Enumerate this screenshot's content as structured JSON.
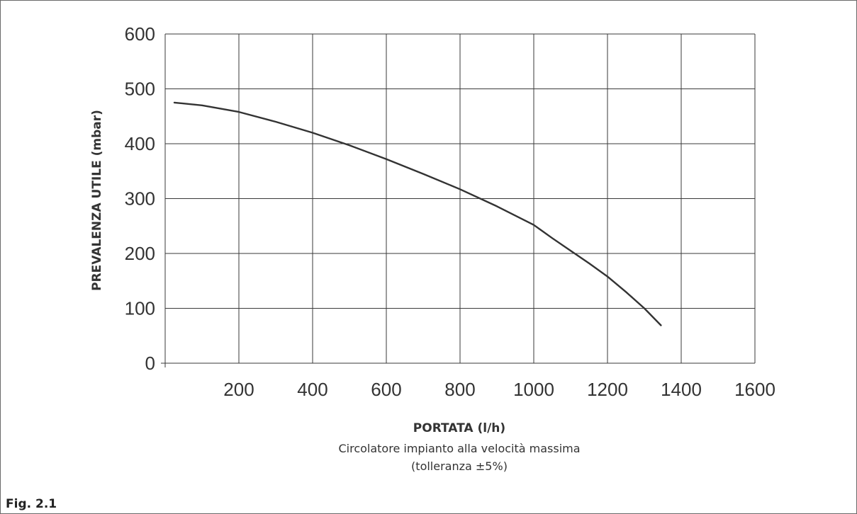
{
  "figure_label": "Fig. 2.1",
  "caption": {
    "line1": "Circolatore impianto alla velocità massima",
    "line2": "(tolleranza ±5%)"
  },
  "chart_data": {
    "type": "line",
    "xlabel": "PORTATA (l/h)",
    "ylabel": "PREVALENZA UTILE (mbar)",
    "xlim": [
      0,
      1600
    ],
    "ylim": [
      0,
      600
    ],
    "x_ticks": [
      200,
      400,
      600,
      800,
      1000,
      1200,
      1400,
      1600
    ],
    "y_ticks": [
      0,
      100,
      200,
      300,
      400,
      500,
      600
    ],
    "grid": true,
    "series": [
      {
        "x": [
          25,
          100,
          200,
          300,
          400,
          500,
          600,
          700,
          800,
          900,
          1000,
          1050,
          1100,
          1150,
          1200,
          1250,
          1300,
          1345
        ],
        "y": [
          475,
          470,
          458,
          440,
          420,
          397,
          372,
          345,
          317,
          286,
          252,
          228,
          205,
          182,
          158,
          130,
          100,
          69
        ]
      }
    ]
  }
}
